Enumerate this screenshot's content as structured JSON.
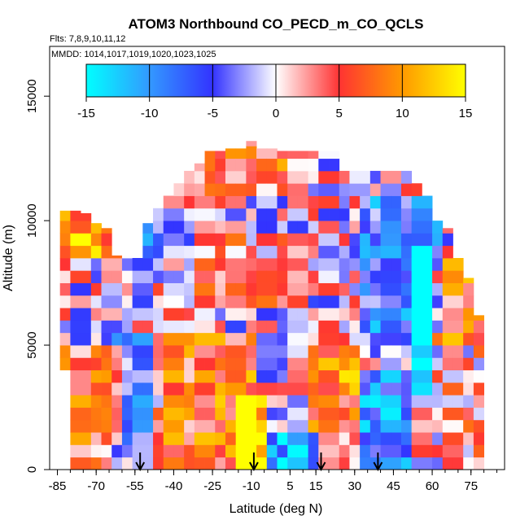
{
  "chart_data": {
    "type": "heatmap",
    "title": "ATOM3 Northbound CO_PECD_m_CO_QCLS",
    "subtitle_flights": "Flts: 7,8,9,10,11,12",
    "subtitle_dates": "MMDD: 1014,1017,1019,1020,1023,1025",
    "xlabel": "Latitude (deg N)",
    "ylabel": "Altitude (m)",
    "xlim": [
      -88,
      88
    ],
    "ylim": [
      0,
      17000
    ],
    "x_ticks": [
      -85,
      -70,
      -55,
      -40,
      -25,
      -10,
      5,
      15,
      30,
      45,
      60,
      75
    ],
    "x_tick_labels": [
      "-85",
      "-70",
      "-55",
      "-40",
      "-25",
      "-10",
      "5",
      "15",
      "30",
      "45",
      "60",
      "75"
    ],
    "y_ticks": [
      0,
      5000,
      10000,
      15000
    ],
    "y_tick_labels": [
      "0",
      "5000",
      "10000",
      "15000"
    ],
    "colorbar": {
      "min": -15,
      "max": 15,
      "ticks": [
        -15,
        -10,
        -5,
        0,
        5,
        10,
        15
      ],
      "tick_labels": [
        "-15",
        "-10",
        "-5",
        "0",
        "5",
        "10",
        "15"
      ],
      "colors": [
        "#00ffff",
        "#3399ff",
        "#3333ff",
        "#ffffff",
        "#ff3333",
        "#ff9900",
        "#ffff00"
      ],
      "placement": "top"
    },
    "arrows_latitude": [
      -53,
      -9,
      17,
      39
    ],
    "column_altitude_ranges": [
      {
        "lat": -82,
        "bottom": 4000,
        "top": 10400
      },
      {
        "lat": -78,
        "bottom": 0,
        "top": 10400
      },
      {
        "lat": -74,
        "bottom": 0,
        "top": 10300
      },
      {
        "lat": -70,
        "bottom": 0,
        "top": 9900
      },
      {
        "lat": -66,
        "bottom": 0,
        "top": 9700
      },
      {
        "lat": -62,
        "bottom": 0,
        "top": 8600
      },
      {
        "lat": -58,
        "bottom": 0,
        "top": 8600
      },
      {
        "lat": -54,
        "bottom": 0,
        "top": 8500
      },
      {
        "lat": -50,
        "bottom": 0,
        "top": 9900
      },
      {
        "lat": -46,
        "bottom": 0,
        "top": 10500
      },
      {
        "lat": -42,
        "bottom": 0,
        "top": 11000
      },
      {
        "lat": -38,
        "bottom": 0,
        "top": 11500
      },
      {
        "lat": -34,
        "bottom": 0,
        "top": 12000
      },
      {
        "lat": -30,
        "bottom": 0,
        "top": 12300
      },
      {
        "lat": -26,
        "bottom": 0,
        "top": 12800
      },
      {
        "lat": -22,
        "bottom": 0,
        "top": 12800
      },
      {
        "lat": -18,
        "bottom": 0,
        "top": 12900
      },
      {
        "lat": -14,
        "bottom": 0,
        "top": 12900
      },
      {
        "lat": -10,
        "bottom": 0,
        "top": 13200
      },
      {
        "lat": -6,
        "bottom": 0,
        "top": 12900
      },
      {
        "lat": -2,
        "bottom": 0,
        "top": 12900
      },
      {
        "lat": 2,
        "bottom": 0,
        "top": 12800
      },
      {
        "lat": 6,
        "bottom": 0,
        "top": 12800
      },
      {
        "lat": 10,
        "bottom": 0,
        "top": 12800
      },
      {
        "lat": 14,
        "bottom": 0,
        "top": 12800
      },
      {
        "lat": 18,
        "bottom": 0,
        "top": 12800
      },
      {
        "lat": 22,
        "bottom": 0,
        "top": 12800
      },
      {
        "lat": 26,
        "bottom": 0,
        "top": 12000
      },
      {
        "lat": 30,
        "bottom": 0,
        "top": 12000
      },
      {
        "lat": 34,
        "bottom": 0,
        "top": 12000
      },
      {
        "lat": 38,
        "bottom": 0,
        "top": 12000
      },
      {
        "lat": 42,
        "bottom": 0,
        "top": 12000
      },
      {
        "lat": 46,
        "bottom": 0,
        "top": 12000
      },
      {
        "lat": 50,
        "bottom": 0,
        "top": 12000
      },
      {
        "lat": 54,
        "bottom": 0,
        "top": 11500
      },
      {
        "lat": 58,
        "bottom": 0,
        "top": 11000
      },
      {
        "lat": 62,
        "bottom": 0,
        "top": 10000
      },
      {
        "lat": 66,
        "bottom": 0,
        "top": 9700
      },
      {
        "lat": 70,
        "bottom": 0,
        "top": 8500
      },
      {
        "lat": 74,
        "bottom": 0,
        "top": 7700
      },
      {
        "lat": 78,
        "bottom": 0,
        "top": 6200
      }
    ],
    "anomaly_regions": [
      {
        "lat_min": -84,
        "lat_max": -60,
        "alt_min": 8500,
        "alt_max": 10500,
        "value": 11
      },
      {
        "lat_min": -84,
        "lat_max": -62,
        "alt_min": 0,
        "alt_max": 5000,
        "value": 6
      },
      {
        "lat_min": -62,
        "lat_max": -45,
        "alt_min": 0,
        "alt_max": 5500,
        "value": -5
      },
      {
        "lat_min": -48,
        "lat_max": -10,
        "alt_min": 0,
        "alt_max": 5500,
        "value": 7
      },
      {
        "lat_min": -16,
        "lat_max": -4,
        "alt_min": 0,
        "alt_max": 3000,
        "value": 13
      },
      {
        "lat_min": -4,
        "lat_max": 14,
        "alt_min": 0,
        "alt_max": 1500,
        "value": -10
      },
      {
        "lat_min": 14,
        "lat_max": 32,
        "alt_min": 1500,
        "alt_max": 5000,
        "value": 8
      },
      {
        "lat_min": 32,
        "lat_max": 52,
        "alt_min": 0,
        "alt_max": 4000,
        "value": -9
      },
      {
        "lat_min": 52,
        "lat_max": 60,
        "alt_min": 3000,
        "alt_max": 9000,
        "value": -13
      },
      {
        "lat_min": 34,
        "lat_max": 62,
        "alt_min": 5500,
        "alt_max": 11000,
        "value": -7
      },
      {
        "lat_min": -26,
        "lat_max": 12,
        "alt_min": 11000,
        "alt_max": 12900,
        "value": 6
      },
      {
        "lat_min": 60,
        "lat_max": 78,
        "alt_min": 5000,
        "alt_max": 9000,
        "value": 7
      },
      {
        "lat_min": 62,
        "lat_max": 78,
        "alt_min": 0,
        "alt_max": 5000,
        "value": 2
      },
      {
        "lat_min": -56,
        "lat_max": -44,
        "alt_min": 7500,
        "alt_max": 10000,
        "value": -6
      },
      {
        "lat_min": -30,
        "lat_max": 10,
        "alt_min": 6500,
        "alt_max": 9500,
        "value": 3
      }
    ]
  }
}
